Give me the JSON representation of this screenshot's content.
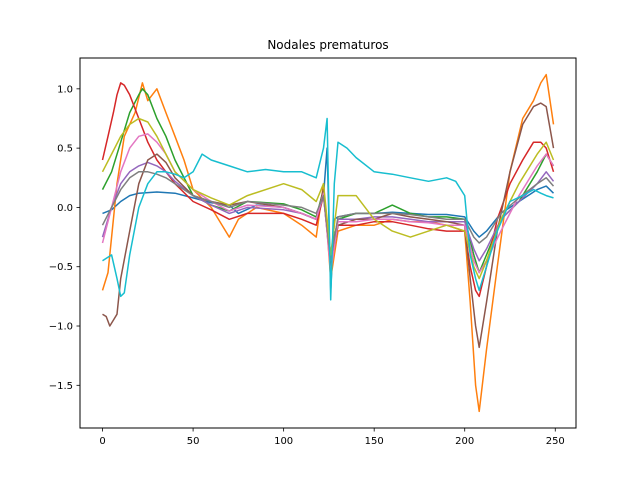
{
  "chart_data": {
    "type": "line",
    "title": "Nodales prematuros",
    "xlabel": "",
    "ylabel": "",
    "xlim": [
      -12.45,
      261.45
    ],
    "ylim": [
      -1.86,
      1.26
    ],
    "xticks": [
      0,
      50,
      100,
      150,
      200,
      250
    ],
    "xtick_labels": [
      "0",
      "50",
      "100",
      "150",
      "200",
      "250"
    ],
    "yticks": [
      1.0,
      0.5,
      0.0,
      -0.5,
      -1.0,
      -1.5
    ],
    "ytick_labels": [
      "1.0",
      "0.5",
      "0.0",
      "−0.5",
      "−1.0",
      "−1.5"
    ],
    "grid": false,
    "legend": "none",
    "series": [
      {
        "color": "#1f77b4",
        "x": [
          0,
          5,
          10,
          15,
          20,
          30,
          40,
          50,
          60,
          70,
          75,
          85,
          100,
          110,
          118,
          122,
          124,
          126,
          128,
          130,
          140,
          150,
          160,
          170,
          180,
          190,
          200,
          205,
          208,
          212,
          220,
          230,
          240,
          245,
          249
        ],
        "y": [
          -0.05,
          -0.02,
          0.05,
          0.1,
          0.12,
          0.13,
          0.12,
          0.08,
          0.04,
          0.02,
          -0.05,
          0.02,
          0.0,
          -0.05,
          -0.1,
          0.1,
          0.5,
          -0.7,
          -0.1,
          -0.08,
          -0.05,
          -0.05,
          -0.04,
          -0.05,
          -0.06,
          -0.06,
          -0.08,
          -0.2,
          -0.25,
          -0.2,
          -0.05,
          0.05,
          0.15,
          0.18,
          0.12
        ]
      },
      {
        "color": "#ff7f0e",
        "x": [
          0,
          3,
          8,
          12,
          18,
          22,
          25,
          30,
          35,
          40,
          45,
          50,
          60,
          70,
          75,
          85,
          100,
          110,
          118,
          122,
          126,
          130,
          140,
          150,
          160,
          170,
          180,
          190,
          200,
          203,
          206,
          208,
          212,
          218,
          225,
          232,
          238,
          242,
          245,
          249
        ],
        "y": [
          -0.7,
          -0.55,
          0.2,
          0.6,
          0.8,
          1.05,
          0.9,
          1.0,
          0.8,
          0.6,
          0.4,
          0.15,
          0.0,
          -0.25,
          -0.1,
          0.0,
          -0.05,
          -0.15,
          -0.25,
          0.2,
          -0.6,
          -0.2,
          -0.15,
          -0.15,
          -0.1,
          -0.12,
          -0.12,
          -0.15,
          -0.2,
          -0.8,
          -1.5,
          -1.72,
          -1.2,
          -0.5,
          0.3,
          0.75,
          0.9,
          1.05,
          1.12,
          0.7
        ]
      },
      {
        "color": "#2ca02c",
        "x": [
          0,
          5,
          10,
          15,
          20,
          22,
          25,
          30,
          35,
          40,
          50,
          60,
          70,
          80,
          100,
          110,
          118,
          122,
          126,
          130,
          140,
          150,
          160,
          170,
          180,
          190,
          200,
          205,
          208,
          212,
          220,
          230,
          240,
          245,
          249
        ],
        "y": [
          0.15,
          0.3,
          0.55,
          0.8,
          0.95,
          1.0,
          0.95,
          0.75,
          0.6,
          0.4,
          0.1,
          0.02,
          -0.03,
          0.05,
          0.03,
          -0.02,
          -0.08,
          0.15,
          -0.4,
          -0.1,
          -0.05,
          -0.05,
          0.02,
          -0.05,
          -0.08,
          -0.08,
          -0.1,
          -0.4,
          -0.55,
          -0.4,
          -0.1,
          0.05,
          0.3,
          0.45,
          0.35
        ]
      },
      {
        "color": "#d62728",
        "x": [
          0,
          3,
          6,
          8,
          10,
          12,
          15,
          20,
          25,
          30,
          35,
          40,
          50,
          60,
          70,
          80,
          100,
          110,
          118,
          122,
          126,
          130,
          140,
          150,
          160,
          170,
          180,
          190,
          200,
          203,
          206,
          208,
          212,
          218,
          225,
          232,
          238,
          242,
          245,
          249
        ],
        "y": [
          0.4,
          0.6,
          0.8,
          0.95,
          1.05,
          1.03,
          0.95,
          0.75,
          0.55,
          0.4,
          0.3,
          0.2,
          0.05,
          -0.02,
          -0.1,
          -0.05,
          -0.05,
          -0.1,
          -0.15,
          0.1,
          -0.5,
          -0.15,
          -0.15,
          -0.12,
          -0.12,
          -0.15,
          -0.18,
          -0.2,
          -0.2,
          -0.5,
          -0.7,
          -0.75,
          -0.5,
          -0.1,
          0.2,
          0.4,
          0.55,
          0.55,
          0.5,
          0.3
        ]
      },
      {
        "color": "#9467bd",
        "x": [
          0,
          5,
          10,
          15,
          20,
          25,
          30,
          35,
          40,
          50,
          60,
          70,
          80,
          100,
          110,
          118,
          122,
          126,
          130,
          140,
          150,
          160,
          170,
          180,
          190,
          200,
          205,
          208,
          212,
          220,
          230,
          240,
          245,
          249
        ],
        "y": [
          -0.25,
          0.0,
          0.2,
          0.3,
          0.35,
          0.38,
          0.35,
          0.3,
          0.22,
          0.1,
          0.02,
          -0.05,
          0.0,
          -0.02,
          -0.05,
          -0.1,
          0.1,
          -0.5,
          -0.1,
          -0.1,
          -0.08,
          -0.08,
          -0.1,
          -0.12,
          -0.12,
          -0.12,
          -0.35,
          -0.45,
          -0.35,
          -0.1,
          0.05,
          0.2,
          0.3,
          0.22
        ]
      },
      {
        "color": "#8c564b",
        "x": [
          0,
          2,
          4,
          6,
          8,
          10,
          15,
          20,
          25,
          30,
          35,
          40,
          50,
          60,
          70,
          80,
          100,
          110,
          118,
          122,
          126,
          130,
          140,
          150,
          160,
          170,
          180,
          190,
          200,
          203,
          206,
          208,
          212,
          218,
          225,
          232,
          238,
          242,
          245,
          249
        ],
        "y": [
          -0.9,
          -0.92,
          -1.0,
          -0.95,
          -0.9,
          -0.6,
          -0.2,
          0.2,
          0.4,
          0.45,
          0.38,
          0.25,
          0.1,
          0.05,
          0.02,
          0.05,
          0.0,
          -0.05,
          -0.1,
          0.15,
          -0.5,
          -0.15,
          -0.1,
          -0.1,
          -0.05,
          -0.08,
          -0.1,
          -0.12,
          -0.15,
          -0.6,
          -1.0,
          -1.18,
          -0.8,
          -0.2,
          0.3,
          0.7,
          0.85,
          0.88,
          0.85,
          0.5
        ]
      },
      {
        "color": "#e377c2",
        "x": [
          0,
          5,
          10,
          15,
          20,
          25,
          30,
          35,
          40,
          50,
          60,
          70,
          80,
          100,
          110,
          118,
          122,
          126,
          130,
          140,
          150,
          160,
          170,
          180,
          190,
          200,
          205,
          208,
          212,
          220,
          230,
          240,
          245,
          249
        ],
        "y": [
          -0.3,
          0.0,
          0.3,
          0.5,
          0.6,
          0.62,
          0.55,
          0.45,
          0.3,
          0.15,
          0.05,
          -0.03,
          0.02,
          0.0,
          -0.05,
          -0.1,
          0.12,
          -0.55,
          -0.12,
          -0.12,
          -0.1,
          -0.1,
          -0.12,
          -0.13,
          -0.15,
          -0.15,
          -0.45,
          -0.55,
          -0.45,
          -0.2,
          0.1,
          0.35,
          0.45,
          0.35
        ]
      },
      {
        "color": "#7f7f7f",
        "x": [
          0,
          5,
          10,
          15,
          20,
          25,
          30,
          35,
          40,
          50,
          60,
          70,
          80,
          100,
          110,
          118,
          122,
          126,
          130,
          140,
          150,
          160,
          170,
          180,
          190,
          200,
          205,
          208,
          212,
          220,
          230,
          240,
          245,
          249
        ],
        "y": [
          -0.15,
          0.0,
          0.15,
          0.25,
          0.3,
          0.3,
          0.28,
          0.25,
          0.2,
          0.1,
          0.05,
          0.0,
          0.05,
          0.02,
          0.0,
          -0.05,
          0.1,
          -0.45,
          -0.08,
          -0.05,
          -0.05,
          -0.05,
          -0.06,
          -0.08,
          -0.1,
          -0.1,
          -0.25,
          -0.3,
          -0.25,
          -0.05,
          0.08,
          0.2,
          0.25,
          0.18
        ]
      },
      {
        "color": "#bcbd22",
        "x": [
          0,
          5,
          10,
          15,
          20,
          25,
          30,
          35,
          40,
          50,
          60,
          70,
          80,
          100,
          110,
          118,
          122,
          126,
          130,
          140,
          150,
          160,
          170,
          180,
          190,
          200,
          205,
          208,
          212,
          220,
          230,
          240,
          245,
          249
        ],
        "y": [
          0.3,
          0.45,
          0.6,
          0.7,
          0.75,
          0.72,
          0.6,
          0.45,
          0.3,
          0.15,
          0.08,
          0.02,
          0.1,
          0.2,
          0.15,
          0.05,
          0.2,
          -0.4,
          0.1,
          0.1,
          -0.1,
          -0.2,
          -0.25,
          -0.2,
          -0.15,
          -0.2,
          -0.5,
          -0.6,
          -0.45,
          -0.1,
          0.2,
          0.45,
          0.55,
          0.4
        ]
      },
      {
        "color": "#17becf",
        "x": [
          0,
          5,
          8,
          10,
          12,
          15,
          20,
          25,
          30,
          35,
          40,
          45,
          50,
          55,
          60,
          70,
          80,
          90,
          100,
          110,
          118,
          122,
          124,
          126,
          128,
          130,
          135,
          140,
          150,
          160,
          170,
          180,
          190,
          195,
          200,
          203,
          206,
          208,
          212,
          218,
          225,
          232,
          238,
          242,
          245,
          249
        ],
        "y": [
          -0.45,
          -0.4,
          -0.6,
          -0.75,
          -0.72,
          -0.4,
          0.0,
          0.2,
          0.3,
          0.3,
          0.28,
          0.25,
          0.3,
          0.45,
          0.4,
          0.35,
          0.3,
          0.32,
          0.3,
          0.3,
          0.25,
          0.5,
          0.75,
          -0.78,
          0.2,
          0.55,
          0.5,
          0.42,
          0.3,
          0.28,
          0.25,
          0.22,
          0.25,
          0.22,
          0.1,
          -0.4,
          -0.6,
          -0.7,
          -0.5,
          -0.2,
          0.05,
          0.1,
          0.15,
          0.12,
          0.1,
          0.08
        ]
      }
    ]
  }
}
